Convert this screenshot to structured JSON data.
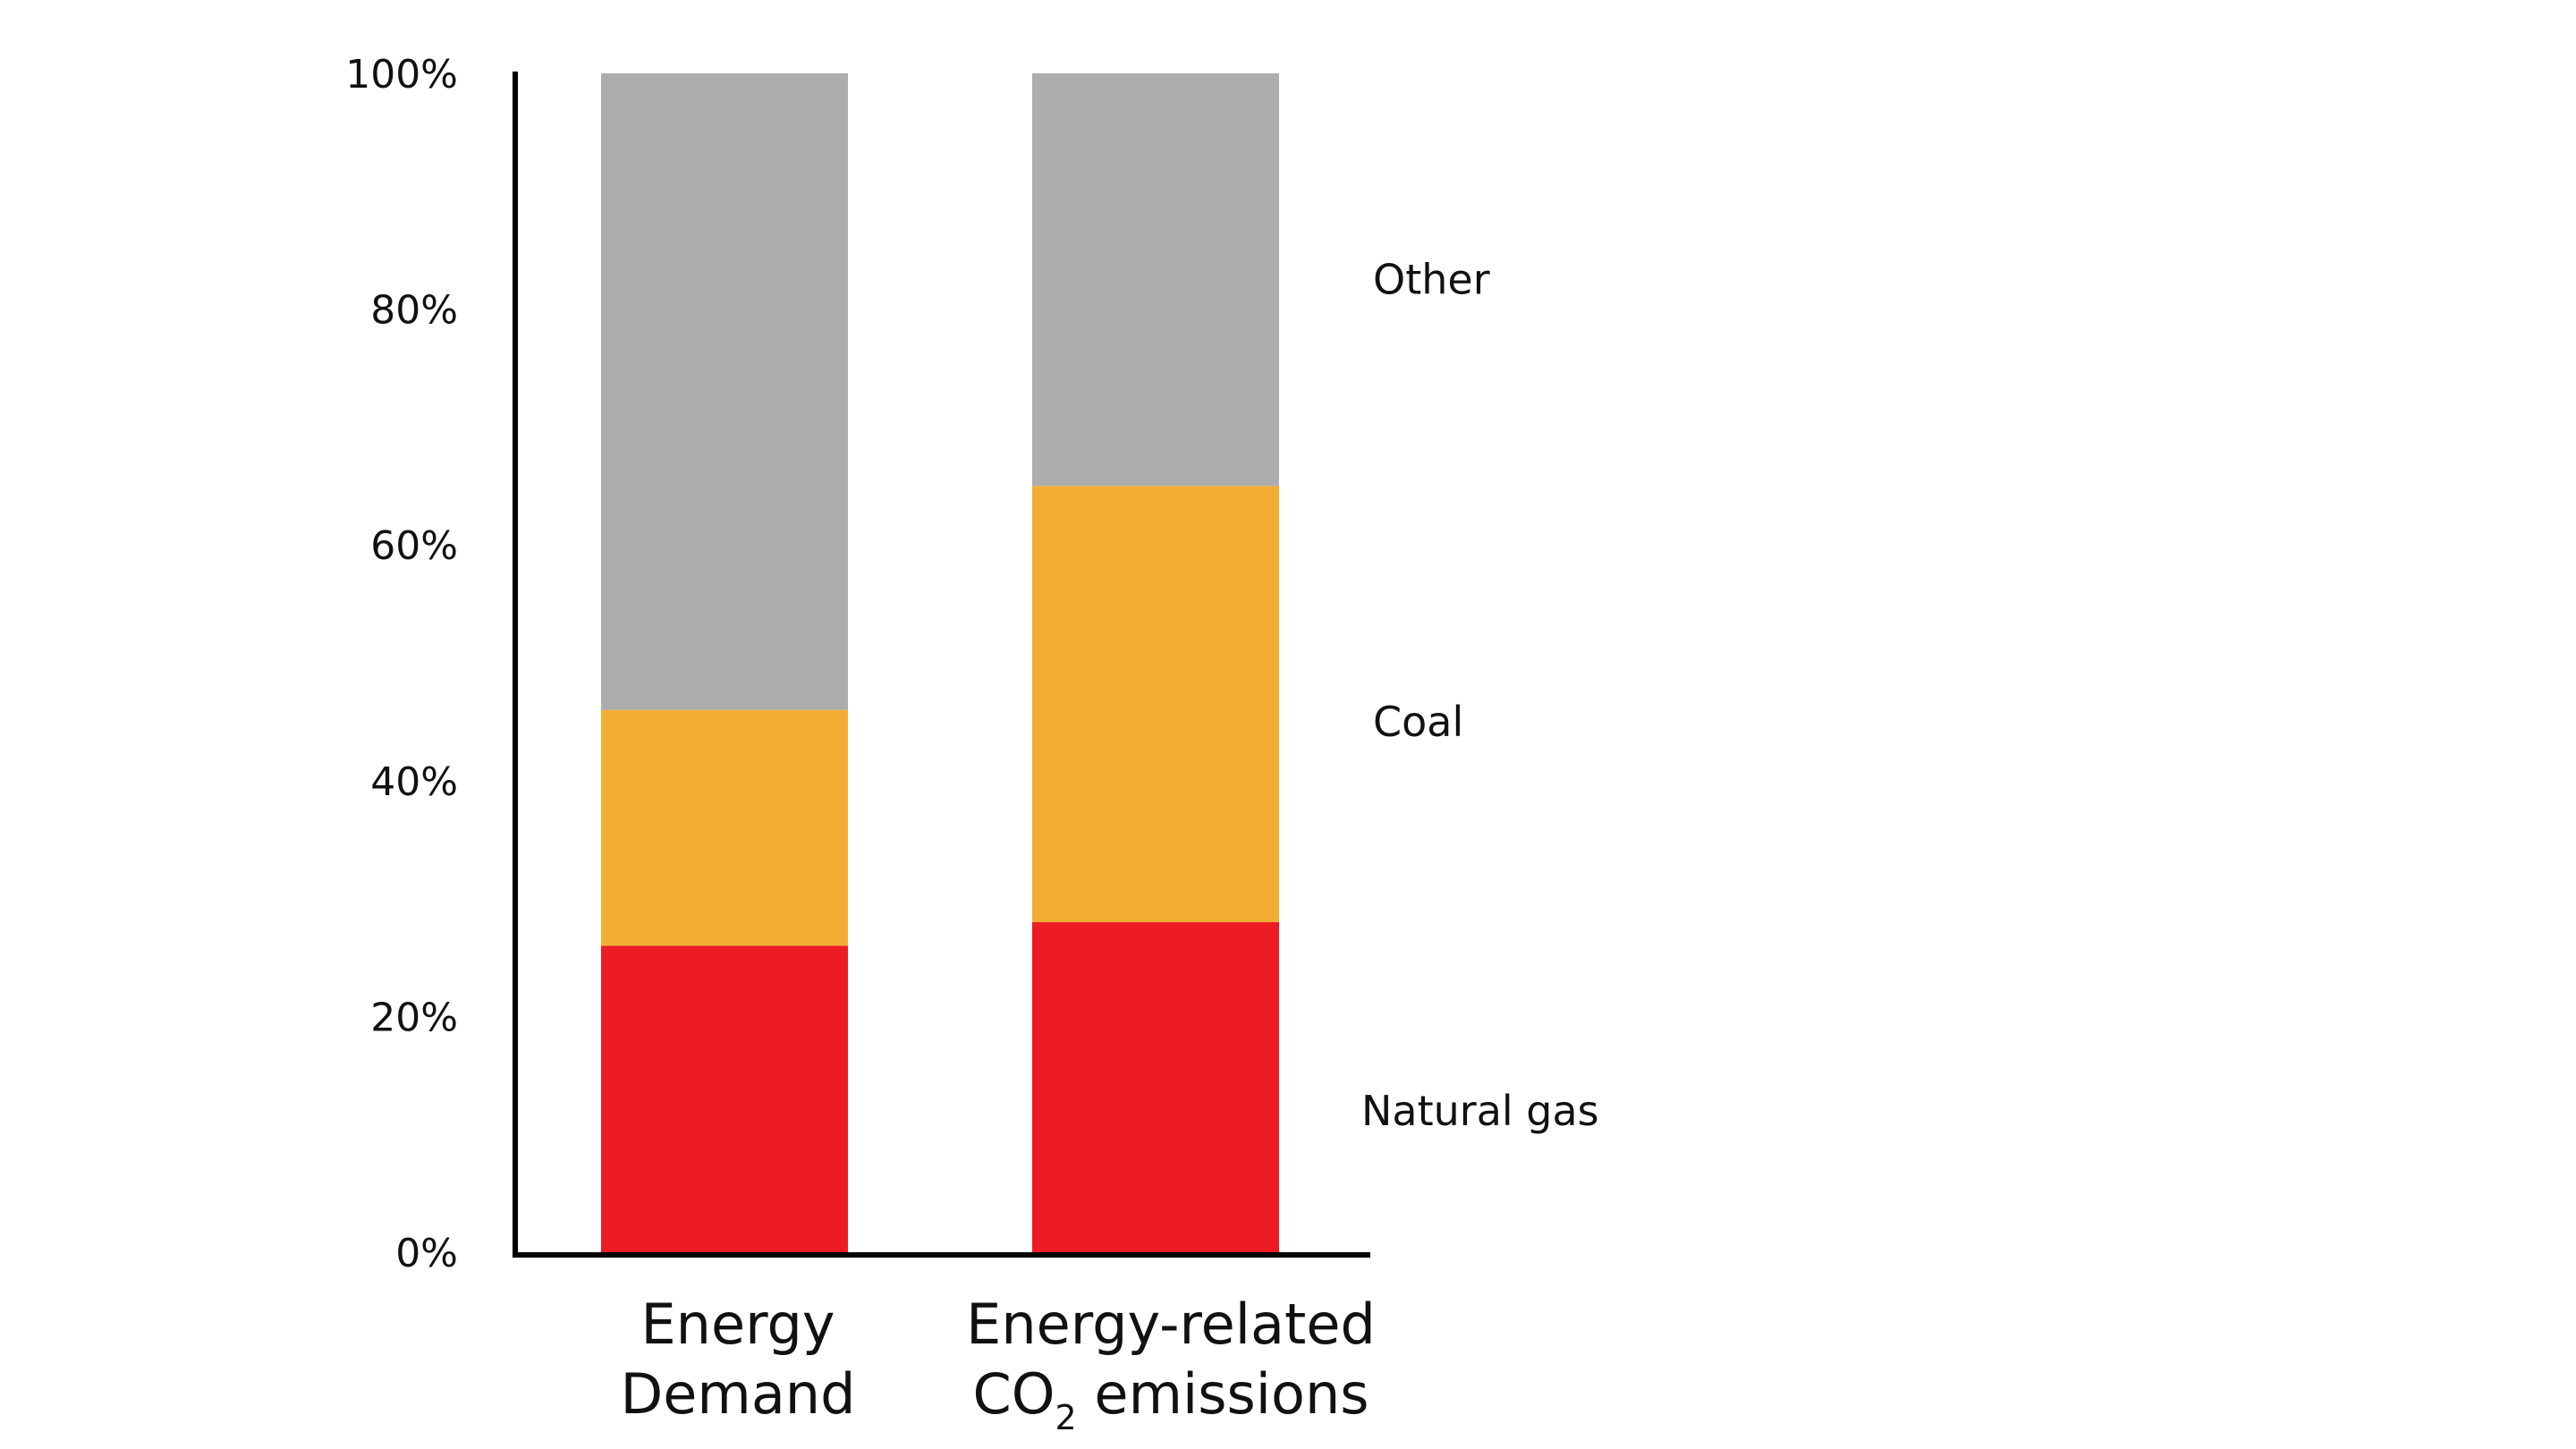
{
  "chart_data": {
    "type": "bar",
    "stacked": true,
    "categories": [
      [
        "Energy",
        "Demand"
      ],
      [
        "Energy-related",
        "CO",
        "2",
        " emissions"
      ]
    ],
    "series": [
      {
        "name": "Natural gas",
        "color": "#ED1C24",
        "values": [
          26,
          28
        ]
      },
      {
        "name": "Coal",
        "color": "#F2AE33",
        "values": [
          20,
          37
        ]
      },
      {
        "name": "Other",
        "color": "#ADADAD",
        "values": [
          54,
          35
        ]
      }
    ],
    "ylim": [
      0,
      100
    ],
    "yticks": [
      0,
      20,
      40,
      60,
      80,
      100
    ],
    "ytick_labels": [
      "0%",
      "20%",
      "40%",
      "60%",
      "80%",
      "100%"
    ],
    "legend_placement": "right",
    "grid": false
  }
}
